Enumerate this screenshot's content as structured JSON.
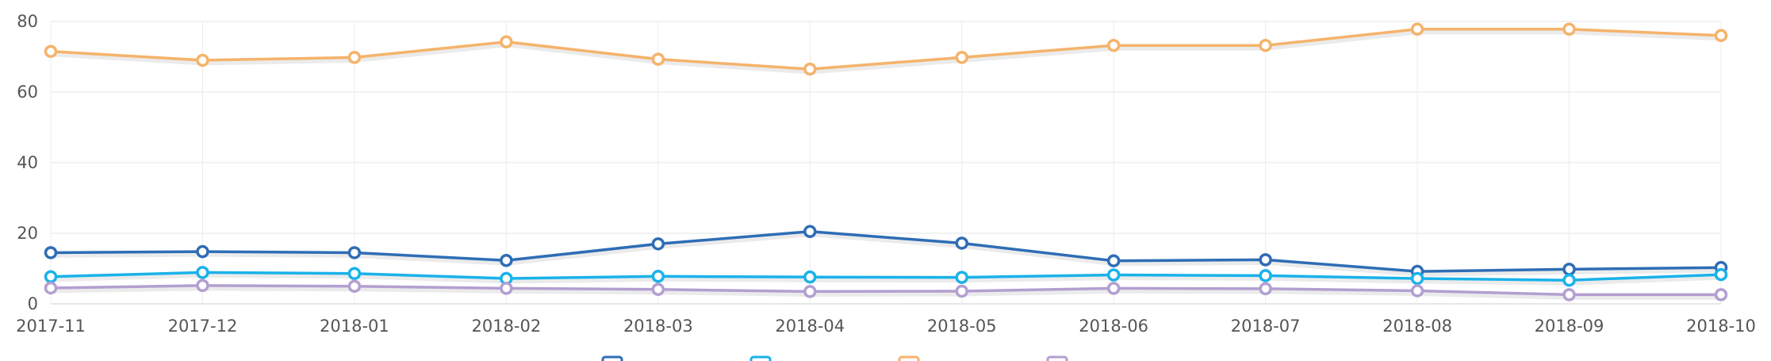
{
  "chart_data": {
    "type": "line",
    "title": "",
    "xlabel": "",
    "ylabel": "",
    "x": [
      "2017-11",
      "2017-12",
      "2018-01",
      "2018-02",
      "2018-03",
      "2018-04",
      "2018-05",
      "2018-06",
      "2018-07",
      "2018-08",
      "2018-09",
      "2018-10"
    ],
    "ylim": [
      0,
      80
    ],
    "yticks": [
      0,
      20,
      40,
      60,
      80
    ],
    "grid": true,
    "legend_position": "bottom",
    "series": [
      {
        "color": "#2f6db5",
        "values": [
          14.5,
          14.8,
          14.5,
          12.3,
          17.0,
          20.5,
          17.2,
          12.2,
          12.5,
          9.2,
          9.8,
          10.3
        ]
      },
      {
        "color": "#1ab2ea",
        "values": [
          7.7,
          8.9,
          8.6,
          7.2,
          7.8,
          7.6,
          7.5,
          8.2,
          8.0,
          7.2,
          6.7,
          8.3
        ]
      },
      {
        "color": "#f5b36b",
        "values": [
          71.5,
          69.0,
          69.8,
          74.2,
          69.3,
          66.5,
          69.8,
          73.2,
          73.2,
          77.8,
          77.8,
          76.0
        ]
      },
      {
        "color": "#b39fd0",
        "values": [
          4.5,
          5.2,
          5.0,
          4.4,
          4.1,
          3.5,
          3.6,
          4.4,
          4.3,
          3.7,
          2.6,
          2.6
        ]
      }
    ]
  }
}
